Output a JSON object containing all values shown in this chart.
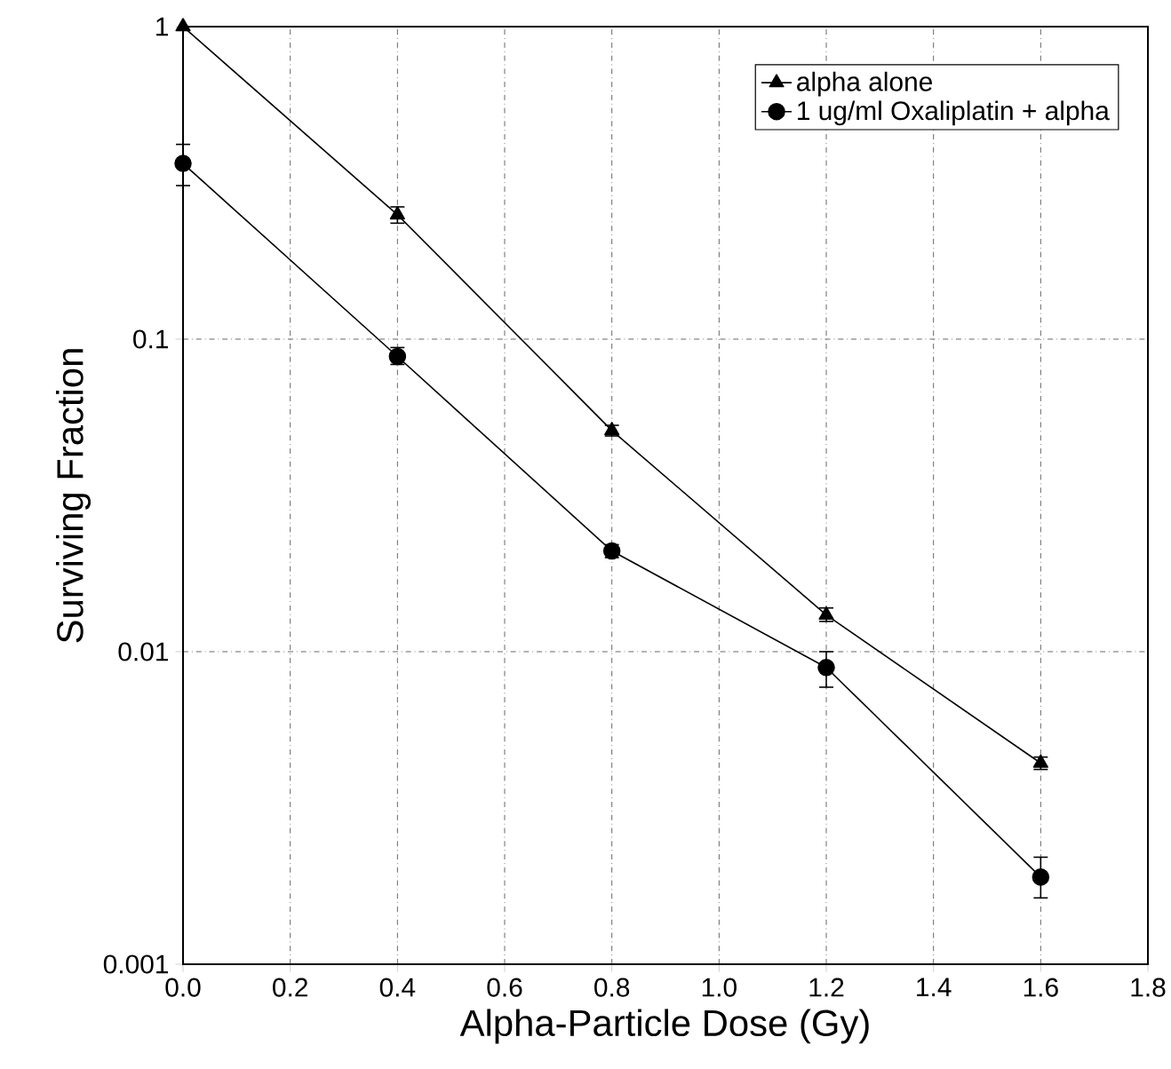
{
  "chart_data": {
    "type": "line",
    "xlabel": "Alpha-Particle Dose (Gy)",
    "ylabel": "Surviving Fraction",
    "log": "y",
    "grid": true,
    "legend": "top right",
    "xlim": [
      0,
      1.8
    ],
    "ylim": [
      0.001,
      1
    ],
    "xticks": [
      {
        "value": 0,
        "label": "0.0"
      },
      {
        "value": 0.2,
        "label": "0.2"
      },
      {
        "value": 0.4,
        "label": "0.4"
      },
      {
        "value": 0.6,
        "label": "0.6"
      },
      {
        "value": 0.8,
        "label": "0.8"
      },
      {
        "value": 1.0,
        "label": "1.0"
      },
      {
        "value": 1.2,
        "label": "1.2"
      },
      {
        "value": 1.4,
        "label": "1.4"
      },
      {
        "value": 1.6,
        "label": "1.6"
      },
      {
        "value": 1.8,
        "label": "1.8"
      }
    ],
    "yticks": [
      1,
      0.1,
      0.01,
      0.001
    ],
    "x": [
      0,
      0.4,
      0.8,
      1.2,
      1.6
    ],
    "series": [
      {
        "name": "alpha alone",
        "color": "#000000",
        "marker": "triangle",
        "values": [
          1,
          0.25,
          0.051,
          0.0131,
          0.0044
        ],
        "errors": [
          null,
          [
            0.235,
            0.265
          ],
          [
            0.049,
            0.053
          ],
          [
            0.0125,
            0.0138
          ],
          [
            0.0042,
            0.0046
          ]
        ]
      },
      {
        "name": "1 ug/ml Oxaliplatin + alpha",
        "color": "#000000",
        "marker": "circle",
        "values": [
          0.365,
          0.088,
          0.021,
          0.0089,
          0.0019
        ],
        "errors": [
          [
            0.31,
            0.42
          ],
          [
            0.083,
            0.094
          ],
          [
            0.02,
            0.022
          ],
          [
            0.0077,
            0.01
          ],
          [
            0.00163,
            0.0022
          ]
        ]
      }
    ]
  }
}
